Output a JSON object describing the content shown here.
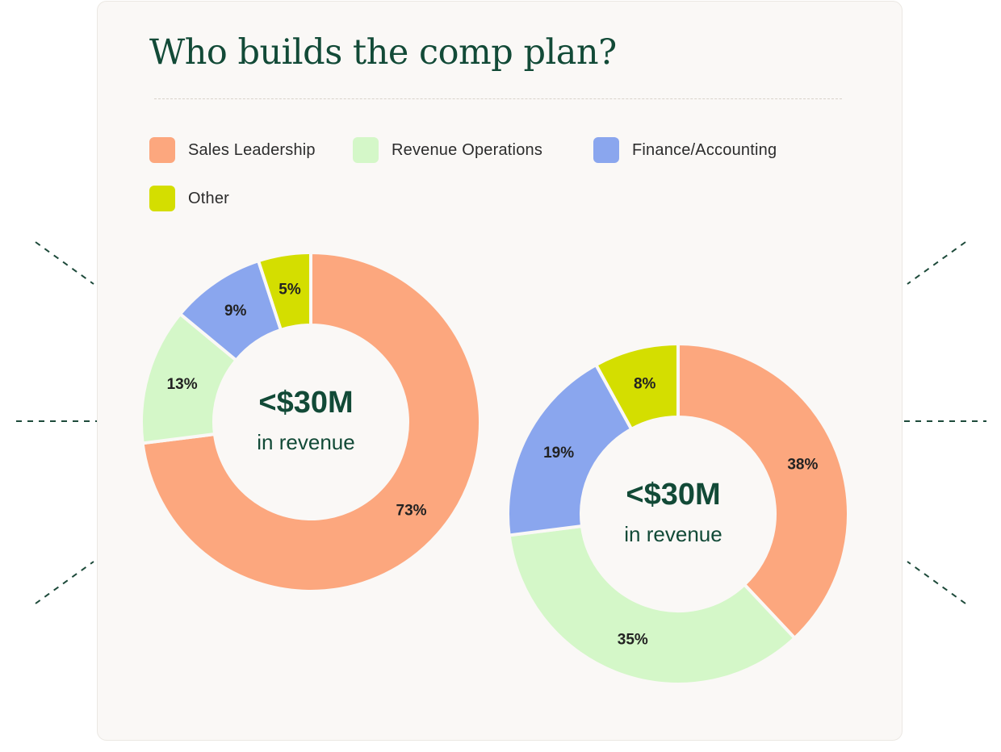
{
  "title": "Who builds the comp plan?",
  "colors": {
    "accent": "#124a37",
    "sales_leadership": "#fca77e",
    "revenue_operations": "#d4f7c8",
    "finance_accounting": "#8aa6ee",
    "other": "#d4de00"
  },
  "legend": [
    {
      "label": "Sales Leadership",
      "color": "#fca77e"
    },
    {
      "label": "Revenue Operations",
      "color": "#d4f7c8"
    },
    {
      "label": "Finance/Accounting",
      "color": "#8aa6ee"
    },
    {
      "label": "Other",
      "color": "#d4de00"
    }
  ],
  "chart_data": [
    {
      "type": "pie",
      "variant": "donut",
      "center_label": "<$30M",
      "center_sublabel": "in revenue",
      "slices": [
        {
          "name": "Sales Leadership",
          "value": 73,
          "label": "73%",
          "color": "#fca77e"
        },
        {
          "name": "Revenue Operations",
          "value": 13,
          "label": "13%",
          "color": "#d4f7c8"
        },
        {
          "name": "Finance/Accounting",
          "value": 9,
          "label": "9%",
          "color": "#8aa6ee"
        },
        {
          "name": "Other",
          "value": 5,
          "label": "5%",
          "color": "#d4de00"
        }
      ]
    },
    {
      "type": "pie",
      "variant": "donut",
      "center_label": "<$30M",
      "center_sublabel": "in revenue",
      "slices": [
        {
          "name": "Sales Leadership",
          "value": 38,
          "label": "38%",
          "color": "#fca77e"
        },
        {
          "name": "Revenue Operations",
          "value": 35,
          "label": "35%",
          "color": "#d4f7c8"
        },
        {
          "name": "Finance/Accounting",
          "value": 19,
          "label": "19%",
          "color": "#8aa6ee"
        },
        {
          "name": "Other",
          "value": 8,
          "label": "8%",
          "color": "#d4de00"
        }
      ]
    }
  ]
}
